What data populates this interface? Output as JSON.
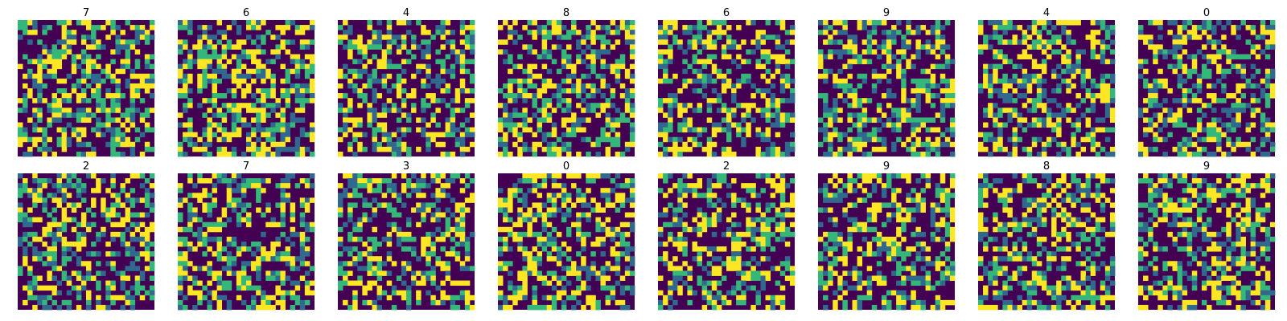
{
  "chart_data": {
    "type": "heatmap",
    "colormap": "viridis",
    "colormap_stops": [
      "#440154",
      "#31688e",
      "#35b779",
      "#fde725"
    ],
    "grid_rows": 2,
    "grid_cols": 8,
    "image_shape": [
      28,
      28
    ],
    "axes_visible": false,
    "panels": [
      {
        "title": "7"
      },
      {
        "title": "6"
      },
      {
        "title": "4"
      },
      {
        "title": "8"
      },
      {
        "title": "6"
      },
      {
        "title": "9"
      },
      {
        "title": "4"
      },
      {
        "title": "0"
      },
      {
        "title": "2"
      },
      {
        "title": "7"
      },
      {
        "title": "3"
      },
      {
        "title": "0"
      },
      {
        "title": "2"
      },
      {
        "title": "9"
      },
      {
        "title": "8"
      },
      {
        "title": "9"
      }
    ]
  }
}
